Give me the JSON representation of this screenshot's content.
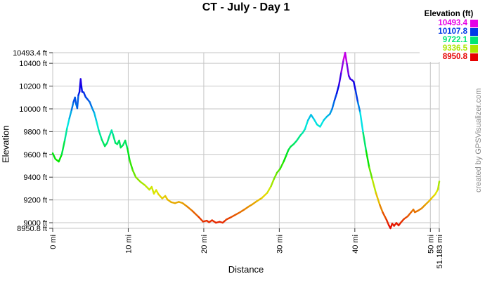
{
  "watermark": "created by GPSVisualizer.com",
  "chart_data": {
    "type": "line",
    "title": "CT - July - Day 1",
    "xlabel": "Distance",
    "ylabel": "Elevation",
    "xlim": [
      0,
      51.183
    ],
    "ylim": [
      8950.8,
      10493.4
    ],
    "grid": true,
    "grid_color": "#c6c6c6",
    "x_ticks": [
      {
        "mi": 0,
        "label": "0 mi"
      },
      {
        "mi": 10,
        "label": "10 mi"
      },
      {
        "mi": 20,
        "label": "20 mi"
      },
      {
        "mi": 30,
        "label": "30 mi"
      },
      {
        "mi": 40,
        "label": "40 mi"
      },
      {
        "mi": 50,
        "label": "50 mi"
      },
      {
        "mi": 51.183,
        "label": "51.183 mi"
      }
    ],
    "y_ticks": [
      {
        "ft": 10493.4,
        "label": "10493.4 ft"
      },
      {
        "ft": 10400,
        "label": "10400 ft"
      },
      {
        "ft": 10200,
        "label": "10200 ft"
      },
      {
        "ft": 10000,
        "label": "10000 ft"
      },
      {
        "ft": 9800,
        "label": "9800 ft"
      },
      {
        "ft": 9600,
        "label": "9600 ft"
      },
      {
        "ft": 9400,
        "label": "9400 ft"
      },
      {
        "ft": 9200,
        "label": "9200 ft"
      },
      {
        "ft": 9000,
        "label": "9000 ft"
      },
      {
        "ft": 8950.8,
        "label": "8950.8 ft"
      }
    ],
    "legend": {
      "title": "Elevation (ft)",
      "position": "top-right",
      "entries": [
        {
          "label": "10493.4",
          "color": "#E600E6"
        },
        {
          "label": "10107.8",
          "color": "#0039E6"
        },
        {
          "label": "9722.1",
          "color": "#00E673"
        },
        {
          "label": "9336.5",
          "color": "#ACE600"
        },
        {
          "label": "8950.8",
          "color": "#E60000"
        }
      ]
    },
    "color_scale": {
      "min_ft": 8950.8,
      "max_ft": 10493.4,
      "hue_min": 0,
      "hue_max": 300,
      "lightness_pct": 45
    },
    "points": [
      [
        0,
        9610
      ],
      [
        0.35,
        9560
      ],
      [
        0.8,
        9537
      ],
      [
        1.2,
        9600
      ],
      [
        1.6,
        9725
      ],
      [
        1.9,
        9830
      ],
      [
        2.2,
        9915
      ],
      [
        2.5,
        9990
      ],
      [
        2.75,
        10060
      ],
      [
        2.95,
        10100
      ],
      [
        3.1,
        10040
      ],
      [
        3.25,
        10005
      ],
      [
        3.4,
        10120
      ],
      [
        3.55,
        10150
      ],
      [
        3.7,
        10262
      ],
      [
        3.8,
        10200
      ],
      [
        3.9,
        10150
      ],
      [
        4.1,
        10145
      ],
      [
        4.35,
        10105
      ],
      [
        4.6,
        10085
      ],
      [
        4.9,
        10060
      ],
      [
        5.2,
        10010
      ],
      [
        5.5,
        9965
      ],
      [
        5.8,
        9890
      ],
      [
        6.1,
        9810
      ],
      [
        6.5,
        9730
      ],
      [
        6.9,
        9672
      ],
      [
        7.2,
        9700
      ],
      [
        7.5,
        9760
      ],
      [
        7.8,
        9812
      ],
      [
        8.0,
        9770
      ],
      [
        8.3,
        9700
      ],
      [
        8.55,
        9690
      ],
      [
        8.8,
        9722
      ],
      [
        9.0,
        9660
      ],
      [
        9.3,
        9680
      ],
      [
        9.6,
        9722
      ],
      [
        9.9,
        9650
      ],
      [
        10.2,
        9545
      ],
      [
        10.6,
        9460
      ],
      [
        11.0,
        9400
      ],
      [
        11.6,
        9360
      ],
      [
        12.2,
        9330
      ],
      [
        12.8,
        9290
      ],
      [
        13.1,
        9315
      ],
      [
        13.4,
        9255
      ],
      [
        13.7,
        9287
      ],
      [
        14.0,
        9250
      ],
      [
        14.5,
        9213
      ],
      [
        14.9,
        9235
      ],
      [
        15.2,
        9203
      ],
      [
        15.7,
        9180
      ],
      [
        16.2,
        9172
      ],
      [
        16.7,
        9183
      ],
      [
        17.2,
        9172
      ],
      [
        17.8,
        9142
      ],
      [
        18.5,
        9103
      ],
      [
        19.3,
        9052
      ],
      [
        19.9,
        9010
      ],
      [
        20.4,
        9018
      ],
      [
        20.7,
        9004
      ],
      [
        21.1,
        9022
      ],
      [
        21.6,
        9000
      ],
      [
        22.1,
        9008
      ],
      [
        22.5,
        9000
      ],
      [
        23.0,
        9028
      ],
      [
        23.6,
        9048
      ],
      [
        24.2,
        9070
      ],
      [
        24.8,
        9092
      ],
      [
        25.4,
        9117
      ],
      [
        25.9,
        9140
      ],
      [
        26.4,
        9160
      ],
      [
        27.0,
        9188
      ],
      [
        27.7,
        9218
      ],
      [
        28.4,
        9262
      ],
      [
        28.9,
        9320
      ],
      [
        29.3,
        9385
      ],
      [
        29.7,
        9440
      ],
      [
        30.1,
        9472
      ],
      [
        30.6,
        9540
      ],
      [
        30.9,
        9588
      ],
      [
        31.2,
        9638
      ],
      [
        31.5,
        9668
      ],
      [
        31.9,
        9690
      ],
      [
        32.3,
        9720
      ],
      [
        32.8,
        9768
      ],
      [
        33.1,
        9790
      ],
      [
        33.4,
        9822
      ],
      [
        33.8,
        9900
      ],
      [
        34.2,
        9948
      ],
      [
        34.6,
        9908
      ],
      [
        35.0,
        9862
      ],
      [
        35.4,
        9843
      ],
      [
        35.9,
        9902
      ],
      [
        36.3,
        9932
      ],
      [
        36.7,
        9955
      ],
      [
        37.0,
        10000
      ],
      [
        37.3,
        10072
      ],
      [
        37.6,
        10135
      ],
      [
        37.9,
        10210
      ],
      [
        38.2,
        10320
      ],
      [
        38.5,
        10430
      ],
      [
        38.72,
        10493
      ],
      [
        38.95,
        10395
      ],
      [
        39.2,
        10290
      ],
      [
        39.4,
        10262
      ],
      [
        39.65,
        10252
      ],
      [
        39.85,
        10238
      ],
      [
        40.1,
        10160
      ],
      [
        40.4,
        10058
      ],
      [
        40.7,
        9972
      ],
      [
        41.1,
        9790
      ],
      [
        41.5,
        9630
      ],
      [
        41.9,
        9487
      ],
      [
        42.3,
        9385
      ],
      [
        42.8,
        9260
      ],
      [
        43.3,
        9158
      ],
      [
        43.7,
        9090
      ],
      [
        44.2,
        9025
      ],
      [
        44.5,
        8978
      ],
      [
        44.72,
        8951
      ],
      [
        44.95,
        8992
      ],
      [
        45.2,
        8972
      ],
      [
        45.5,
        8998
      ],
      [
        45.8,
        8976
      ],
      [
        46.1,
        9002
      ],
      [
        46.5,
        9032
      ],
      [
        47.0,
        9056
      ],
      [
        47.5,
        9096
      ],
      [
        47.75,
        9116
      ],
      [
        47.95,
        9092
      ],
      [
        48.35,
        9105
      ],
      [
        48.85,
        9126
      ],
      [
        49.3,
        9156
      ],
      [
        49.8,
        9188
      ],
      [
        50.2,
        9218
      ],
      [
        50.65,
        9250
      ],
      [
        51.0,
        9292
      ],
      [
        51.1,
        9330
      ],
      [
        51.183,
        9362
      ]
    ]
  }
}
